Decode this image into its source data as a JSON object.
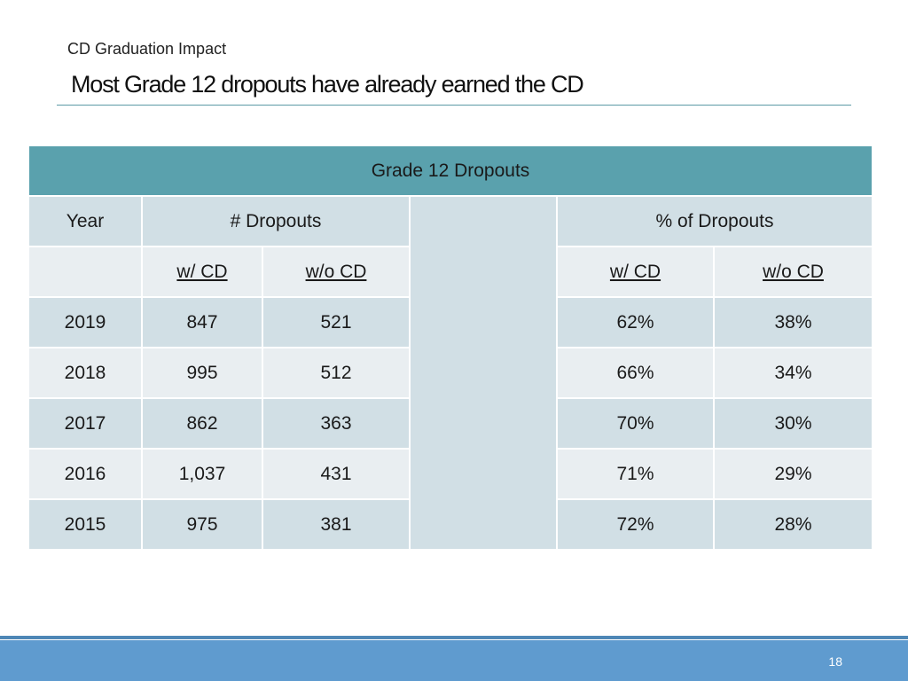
{
  "slide": {
    "subtitle": "CD Graduation Impact",
    "title": "Most Grade 12 dropouts have already earned the CD",
    "page_number": "18"
  },
  "table": {
    "band": "Grade 12 Dropouts",
    "col_year": "Year",
    "col_num": "# Dropouts",
    "col_pct": "% of Dropouts",
    "sub_with": "w/ CD",
    "sub_without": "w/o CD",
    "rows": [
      {
        "year": "2019",
        "with": "847",
        "without": "521",
        "pct_with": "62%",
        "pct_without": "38%"
      },
      {
        "year": "2018",
        "with": "995",
        "without": "512",
        "pct_with": "66%",
        "pct_without": "34%"
      },
      {
        "year": "2017",
        "with": "862",
        "without": "363",
        "pct_with": "70%",
        "pct_without": "30%"
      },
      {
        "year": "2016",
        "with": "1,037",
        "without": "431",
        "pct_with": "71%",
        "pct_without": "29%"
      },
      {
        "year": "2015",
        "with": "975",
        "without": "381",
        "pct_with": "72%",
        "pct_without": "28%"
      }
    ]
  },
  "colors": {
    "band": "#5aa1ad",
    "row_light": "#d1dfe5",
    "row_very_light": "#e9eef1",
    "footer": "#5f9bcf",
    "title_rule": "#5b9aa6"
  }
}
